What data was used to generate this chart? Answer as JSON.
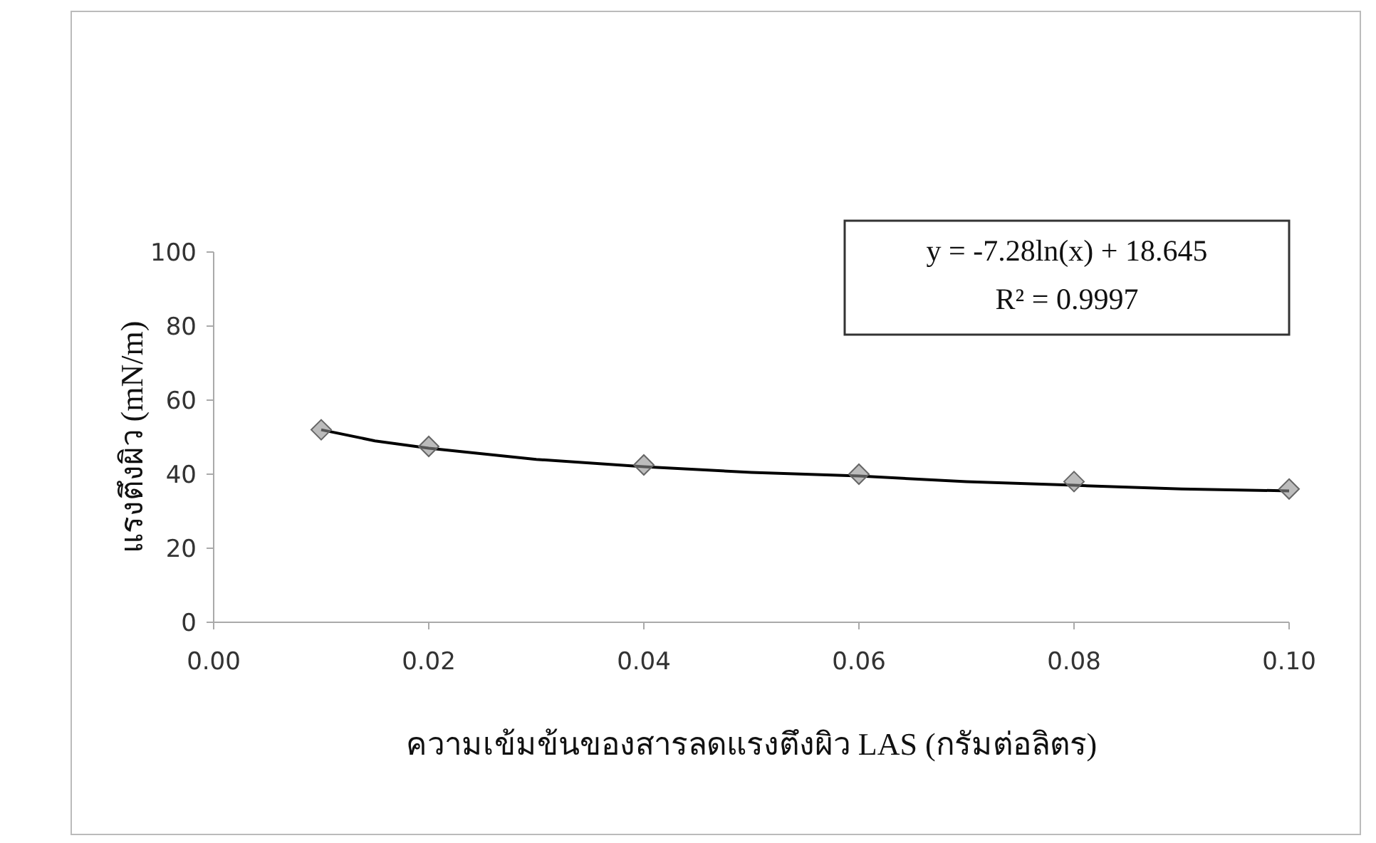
{
  "chart_data": {
    "type": "scatter",
    "xlabel": "ความเข้มข้นของสารลดแรงตึงผิว LAS (กรัมต่อลิตร)",
    "ylabel": "แรงตึงผิว (mN/m)",
    "annotations": [
      "y = -7.28ln(x) + 18.645",
      "R² = 0.9997"
    ],
    "xlim": [
      0,
      0.1
    ],
    "ylim": [
      0,
      100
    ],
    "xticks": [
      {
        "value": 0,
        "label": "0.00"
      },
      {
        "value": 0.02,
        "label": "0.02"
      },
      {
        "value": 0.04,
        "label": "0.04"
      },
      {
        "value": 0.06,
        "label": "0.06"
      },
      {
        "value": 0.08,
        "label": "0.08"
      },
      {
        "value": 0.1,
        "label": "0.10"
      }
    ],
    "yticks": [
      0,
      20,
      40,
      60,
      80,
      100
    ],
    "series": [
      {
        "type": "line",
        "color": "#000000",
        "marker": "none",
        "x": [
          0.01,
          0.015,
          0.02,
          0.03,
          0.04,
          0.05,
          0.06,
          0.07,
          0.08,
          0.09,
          0.1
        ],
        "values": [
          52,
          49,
          47,
          44,
          42,
          40.5,
          39.5,
          38,
          37,
          36,
          35.5
        ]
      },
      {
        "type": "scatter",
        "color": "#909090",
        "marker": "diamond",
        "x": [
          0.01,
          0.02,
          0.04,
          0.06,
          0.08,
          0.1
        ],
        "values": [
          52,
          47.5,
          42.5,
          40,
          38,
          36
        ]
      }
    ]
  }
}
